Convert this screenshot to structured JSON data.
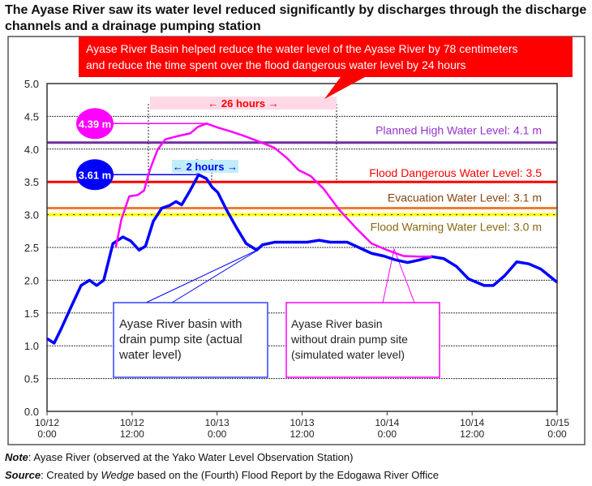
{
  "title": "The Ayase River saw its water level reduced significantly by discharges through the discharge channels and a drainage pumping station",
  "callout": {
    "line1": "Ayase River Basin helped reduce the water level of the Ayase River by 78 centimeters",
    "line2": "and reduce the time spent over the flood dangerous water level by 24 hours"
  },
  "footer": {
    "note_label": "Note",
    "note_text": ": Ayase River (observed at the Yako Water Level Observation Station)",
    "source_label": "Source",
    "source_text_a": ": Created by ",
    "source_italic": "Wedge",
    "source_text_b": " based on the (Fourth) Flood Report by the Edogawa River Office"
  },
  "chart_data": {
    "type": "line",
    "title": "",
    "xlabel": "",
    "ylabel": "",
    "xlim_hours": [
      0,
      72
    ],
    "ylim": [
      0,
      5
    ],
    "yticks": [
      "0.0",
      "0.5",
      "1.0",
      "1.5",
      "2.0",
      "2.5",
      "3.0",
      "3.5",
      "4.0",
      "4.5",
      "5.0"
    ],
    "xticks": [
      {
        "h": 0,
        "l1": "10/12",
        "l2": "0:00"
      },
      {
        "h": 12,
        "l1": "10/12",
        "l2": "12:00"
      },
      {
        "h": 24,
        "l1": "10/13",
        "l2": "0:00"
      },
      {
        "h": 36,
        "l1": "10/13",
        "l2": "12:00"
      },
      {
        "h": 48,
        "l1": "10/14",
        "l2": "0:00"
      },
      {
        "h": 60,
        "l1": "10/14",
        "l2": "12:00"
      },
      {
        "h": 72,
        "l1": "10/15",
        "l2": "0:00"
      }
    ],
    "grid": true,
    "reference_lines": [
      {
        "label": "Planned High Water Level: 4.1 m",
        "value": 4.1,
        "color": "#7030a0",
        "text_color": "#9933cc"
      },
      {
        "label": "Flood Dangerous Water Level: 3.5",
        "value": 3.5,
        "color": "#ff0000",
        "text_color": "#ff0000"
      },
      {
        "label": "Evacuation Water Level: 3.1 m",
        "value": 3.1,
        "color": "#ed7d31",
        "text_color": "#8b4513"
      },
      {
        "label": "Flood Warning Water Level: 3.0 m",
        "value": 3.0,
        "color": "#ffff00",
        "text_color": "#8b6914"
      }
    ],
    "series": [
      {
        "name": "Ayase River basin with drain pump site (actual water level)",
        "color": "#0000ff",
        "x": [
          0,
          1,
          2,
          3.3,
          4.8,
          6,
          7,
          8,
          9.3,
          10.7,
          11.8,
          13,
          13.9,
          15,
          16.2,
          17.3,
          18.2,
          19,
          20.2,
          21.4,
          22.5,
          23.3,
          24.1,
          25.3,
          26.7,
          28.1,
          29.6,
          30.4,
          32.1,
          34.4,
          36.7,
          38.4,
          40,
          42.4,
          44,
          45.8,
          47.5,
          49.2,
          50.9,
          52.6,
          54.3,
          56,
          57.8,
          59.5,
          61.7,
          63,
          64.6,
          66.3,
          68,
          69.7,
          72
        ],
        "y": [
          1.11,
          1.04,
          1.26,
          1.57,
          1.92,
          2.0,
          1.92,
          2.0,
          2.56,
          2.66,
          2.6,
          2.46,
          2.52,
          2.9,
          3.1,
          3.14,
          3.2,
          3.15,
          3.37,
          3.61,
          3.55,
          3.42,
          3.34,
          3.08,
          2.81,
          2.56,
          2.46,
          2.54,
          2.58,
          2.58,
          2.58,
          2.61,
          2.58,
          2.58,
          2.5,
          2.41,
          2.37,
          2.31,
          2.27,
          2.31,
          2.36,
          2.33,
          2.21,
          2.02,
          1.92,
          1.92,
          2.07,
          2.28,
          2.25,
          2.17,
          1.97
        ]
      },
      {
        "name": "Ayase River basin without drain pump site (simulated water level)",
        "color": "#ff00ff",
        "x": [
          9.7,
          10.5,
          11.6,
          12.8,
          13.7,
          14.5,
          15.6,
          16.7,
          18.5,
          20.2,
          21.3,
          22.5,
          24.1,
          25.9,
          27.6,
          29.8,
          32.1,
          33.8,
          35.5,
          37.2,
          39,
          41.2,
          43.5,
          45.8,
          48,
          50.3,
          52.6,
          54.3
        ],
        "y": [
          2.5,
          2.93,
          3.28,
          3.3,
          3.37,
          3.68,
          3.99,
          4.15,
          4.2,
          4.24,
          4.34,
          4.39,
          4.33,
          4.27,
          4.21,
          4.12,
          4.02,
          3.87,
          3.68,
          3.59,
          3.4,
          3.08,
          2.81,
          2.56,
          2.46,
          2.37,
          2.36,
          2.36
        ]
      }
    ],
    "annotations": {
      "peak_simulated": "4.39 m",
      "peak_actual": "3.61 m",
      "span_26": "26 hours",
      "span_2": "2 hours",
      "box_actual": [
        "Ayase River basin with",
        "drain pump site (actual",
        "water level)"
      ],
      "box_simulated": [
        "Ayase River basin",
        "without drain pump site",
        "(simulated water level)"
      ]
    }
  }
}
